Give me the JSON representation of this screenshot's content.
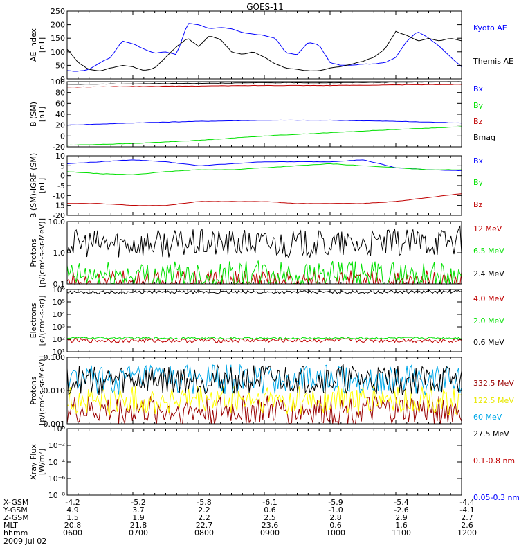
{
  "title": "GOES-11",
  "footer": {
    "rows": [
      {
        "label": "X-GSM",
        "values": [
          "-4.2",
          "-5.2",
          "-5.8",
          "-6.1",
          "-5.9",
          "-5.4",
          "-4.4"
        ]
      },
      {
        "label": "Y-GSM",
        "values": [
          "4.9",
          "3.7",
          "2.2",
          "0.6",
          "-1.0",
          "-2.6",
          "-4.1"
        ]
      },
      {
        "label": "Z-GSM",
        "values": [
          "1.5",
          "1.9",
          "2.2",
          "2.5",
          "2.8",
          "2.9",
          "2.7"
        ]
      },
      {
        "label": "MLT",
        "values": [
          "20.8",
          "21.8",
          "22.7",
          "23.6",
          "0.6",
          "1.6",
          "2.6"
        ]
      },
      {
        "label": "hhmm",
        "values": [
          "0600",
          "0700",
          "0800",
          "0900",
          "1000",
          "1100",
          "1200"
        ]
      }
    ],
    "date": "2009 Jul 02"
  },
  "colors": {
    "black": "#000000",
    "blue": "#0000ff",
    "red": "#c00000",
    "green": "#00e000",
    "darkred": "#990000",
    "yellow": "#ffff00",
    "cyan": "#00a8e8"
  },
  "chart_data": [
    {
      "type": "line",
      "ylabel": "AE index",
      "yunit": "[nT]",
      "ylim": [
        0,
        250
      ],
      "yscale": "linear",
      "yticks": [
        "0",
        "50",
        "100",
        "150",
        "200",
        "250"
      ],
      "xlim": [
        "06:00",
        "12:00"
      ],
      "series": [
        {
          "name": "Kyoto AE",
          "color": "#0000ff",
          "x": [
            "06:00",
            "06:10",
            "06:20",
            "06:30",
            "06:40",
            "06:50",
            "07:00",
            "07:10",
            "07:20",
            "07:30",
            "07:40",
            "07:50",
            "08:00",
            "08:10",
            "08:20",
            "08:30",
            "08:40",
            "08:50",
            "09:00",
            "09:10",
            "09:20",
            "09:30",
            "09:40",
            "09:50",
            "10:00",
            "10:10",
            "10:20",
            "10:30",
            "10:40",
            "10:50",
            "11:00",
            "11:10",
            "11:20",
            "11:30",
            "11:40",
            "11:50",
            "12:00"
          ],
          "y": [
            30,
            28,
            35,
            60,
            80,
            140,
            130,
            110,
            95,
            100,
            90,
            205,
            200,
            185,
            190,
            185,
            170,
            165,
            160,
            150,
            95,
            90,
            135,
            125,
            60,
            50,
            50,
            55,
            55,
            60,
            80,
            140,
            175,
            150,
            120,
            80,
            45
          ]
        },
        {
          "name": "Themis AE",
          "color": "#000000",
          "x": [
            "06:00",
            "06:10",
            "06:20",
            "06:30",
            "06:40",
            "06:50",
            "07:00",
            "07:10",
            "07:20",
            "07:30",
            "07:40",
            "07:50",
            "08:00",
            "08:10",
            "08:20",
            "08:30",
            "08:40",
            "08:50",
            "09:00",
            "09:10",
            "09:20",
            "09:30",
            "09:40",
            "09:50",
            "10:00",
            "10:10",
            "10:20",
            "10:30",
            "10:40",
            "10:50",
            "11:00",
            "11:10",
            "11:20",
            "11:30",
            "11:40",
            "11:50",
            "12:00"
          ],
          "y": [
            110,
            60,
            35,
            30,
            40,
            50,
            45,
            30,
            40,
            80,
            120,
            150,
            120,
            160,
            145,
            100,
            90,
            100,
            80,
            55,
            40,
            35,
            30,
            30,
            40,
            45,
            55,
            65,
            80,
            110,
            175,
            160,
            140,
            150,
            140,
            150,
            140
          ]
        }
      ]
    },
    {
      "type": "line",
      "ylabel": "B (SM)",
      "yunit": "[nT]",
      "ylim": [
        -20,
        100
      ],
      "yscale": "linear",
      "yticks": [
        "-20",
        "0",
        "20",
        "40",
        "60",
        "80",
        "100"
      ],
      "series": [
        {
          "name": "Bx",
          "color": "#0000ff",
          "x": [
            "06:00",
            "07:00",
            "08:00",
            "09:00",
            "10:00",
            "11:00",
            "12:00"
          ],
          "y": [
            20,
            24,
            27,
            29,
            29,
            27,
            24
          ]
        },
        {
          "name": "By",
          "color": "#00e000",
          "x": [
            "06:00",
            "07:00",
            "08:00",
            "09:00",
            "10:00",
            "11:00",
            "12:00"
          ],
          "y": [
            -17,
            -14,
            -8,
            0,
            6,
            12,
            17
          ]
        },
        {
          "name": "Bz",
          "color": "#c00000",
          "x": [
            "06:00",
            "07:00",
            "08:00",
            "09:00",
            "10:00",
            "11:00",
            "12:00"
          ],
          "y": [
            90,
            91,
            92,
            93,
            93,
            94,
            95
          ]
        },
        {
          "name": "Bmag",
          "color": "#000000",
          "x": [
            "06:00",
            "07:00",
            "08:00",
            "09:00",
            "10:00",
            "11:00",
            "12:00"
          ],
          "y": [
            95,
            96,
            97,
            98,
            98,
            99,
            100
          ]
        }
      ]
    },
    {
      "type": "line",
      "ylabel": "B (SM)-IGRF (SM)",
      "yunit": "[nT]",
      "ylim": [
        -20,
        10
      ],
      "yscale": "linear",
      "yticks": [
        "-20",
        "-15",
        "-10",
        "-5",
        "0",
        "5",
        "10"
      ],
      "series": [
        {
          "name": "Bx",
          "color": "#0000ff",
          "x": [
            "06:00",
            "06:30",
            "07:00",
            "07:30",
            "08:00",
            "08:30",
            "09:00",
            "09:30",
            "10:00",
            "10:30",
            "11:00",
            "11:30",
            "12:00"
          ],
          "y": [
            6,
            7,
            8,
            7,
            5,
            6,
            7,
            7,
            7,
            8,
            4,
            3,
            2.5
          ]
        },
        {
          "name": "By",
          "color": "#00e000",
          "x": [
            "06:00",
            "06:30",
            "07:00",
            "07:30",
            "08:00",
            "08:30",
            "09:00",
            "09:30",
            "10:00",
            "10:30",
            "11:00",
            "11:30",
            "12:00"
          ],
          "y": [
            2,
            1,
            0.5,
            2,
            3,
            3,
            4,
            5,
            6,
            5,
            4,
            3,
            3
          ]
        },
        {
          "name": "Bz",
          "color": "#c00000",
          "x": [
            "06:00",
            "06:30",
            "07:00",
            "07:30",
            "08:00",
            "08:30",
            "09:00",
            "09:30",
            "10:00",
            "10:30",
            "11:00",
            "11:30",
            "12:00"
          ],
          "y": [
            -14,
            -14,
            -15,
            -15,
            -13,
            -13,
            -13,
            -14,
            -14,
            -14,
            -13,
            -11,
            -9
          ]
        }
      ]
    },
    {
      "type": "line",
      "ylabel": "Protons",
      "yunit": "[p/(cm²-s-sr-MeV)]",
      "ylim": [
        0.1,
        10
      ],
      "yscale": "log",
      "yticks": [
        "0.1",
        "1.0",
        "10.0"
      ],
      "series": [
        {
          "name": "12 MeV",
          "color": "#c00000",
          "x": [
            "06:00",
            "09:00",
            "12:00"
          ],
          "y": [
            0.1,
            0.1,
            0.1
          ]
        },
        {
          "name": "6.5 MeV",
          "color": "#00e000",
          "x": [
            "06:00",
            "09:00",
            "12:00"
          ],
          "y": [
            0.18,
            0.2,
            0.18
          ]
        },
        {
          "name": "2.4 MeV",
          "color": "#000000",
          "x": [
            "06:00",
            "07:00",
            "08:00",
            "09:00",
            "10:00",
            "11:00",
            "12:00"
          ],
          "y": [
            2,
            2,
            2,
            2,
            1.8,
            2,
            2.5
          ]
        }
      ]
    },
    {
      "type": "line",
      "ylabel": "Electrons",
      "yunit": "[e/(cm²-s-sr)]",
      "ylim": [
        10,
        1000000
      ],
      "yscale": "log",
      "yticks": [
        "10¹",
        "10²",
        "10³",
        "10⁴",
        "10⁵",
        "10⁶"
      ],
      "series": [
        {
          "name": "4.0 MeV",
          "color": "#c00000",
          "x": [
            "06:00",
            "09:00",
            "12:00"
          ],
          "y": [
            80,
            80,
            80
          ]
        },
        {
          "name": "2.0 MeV",
          "color": "#00e000",
          "x": [
            "06:00",
            "09:00",
            "12:00"
          ],
          "y": [
            130,
            120,
            130
          ]
        },
        {
          "name": "0.6 MeV",
          "color": "#000000",
          "x": [
            "06:00",
            "09:00",
            "12:00"
          ],
          "y": [
            600000,
            600000,
            650000
          ]
        }
      ]
    },
    {
      "type": "line",
      "ylabel": "Protons",
      "yunit": "[p/(cm²-s-sr-MeV)]",
      "ylim": [
        0.001,
        0.1
      ],
      "yscale": "log",
      "yticks": [
        "0.001",
        "0.010",
        "0.100"
      ],
      "series": [
        {
          "name": "332.5 MeV",
          "color": "#990000",
          "x": [
            "06:00",
            "09:00",
            "12:00"
          ],
          "y": [
            0.0025,
            0.0025,
            0.0025
          ]
        },
        {
          "name": "122.5 MeV",
          "color": "#ffff00",
          "x": [
            "06:00",
            "09:00",
            "12:00"
          ],
          "y": [
            0.005,
            0.005,
            0.005
          ]
        },
        {
          "name": "60 MeV",
          "color": "#00a8e8",
          "x": [
            "06:00",
            "09:00",
            "12:00"
          ],
          "y": [
            0.02,
            0.022,
            0.02
          ]
        },
        {
          "name": "27.5 MeV",
          "color": "#000000",
          "x": [
            "06:00",
            "09:00",
            "12:00"
          ],
          "y": [
            0.02,
            0.022,
            0.02
          ]
        }
      ]
    },
    {
      "type": "line",
      "ylabel": "Xray Flux",
      "yunit": "[W/m²]",
      "ylim": [
        1e-09,
        1
      ],
      "yscale": "log",
      "yticks": [
        "10⁻⁸",
        "10⁻⁶",
        "10⁻⁴",
        "10⁻²",
        "10⁰"
      ],
      "series": [
        {
          "name": "0.1-0.8 nm",
          "color": "#c00000",
          "x": [],
          "y": []
        },
        {
          "name": "0.05-0.3 nm",
          "color": "#0000ff",
          "x": [],
          "y": []
        }
      ]
    }
  ]
}
